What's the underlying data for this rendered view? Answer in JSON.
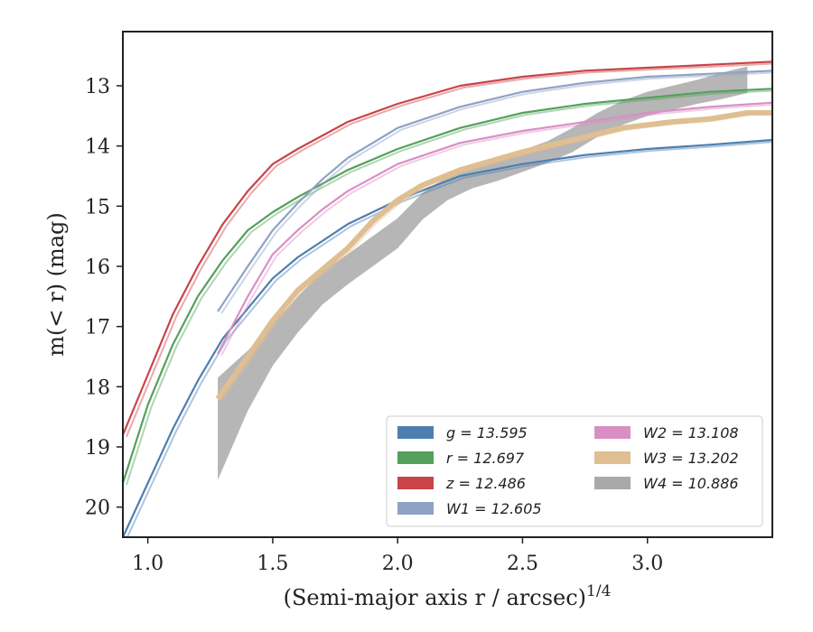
{
  "chart_data": {
    "type": "line",
    "xlabel": "(Semi-major axis r / arcsec)",
    "xlabel_superscript": "1/4",
    "ylabel": "m(< r) (mag)",
    "xlim": [
      0.9,
      3.5
    ],
    "ylim": [
      20.5,
      12.1
    ],
    "y_inverted": true,
    "grid": false,
    "legend_position": "lower-right",
    "x_ticks": [
      "1.0",
      "1.5",
      "2.0",
      "2.5",
      "3.0"
    ],
    "y_ticks": [
      "13",
      "14",
      "15",
      "16",
      "17",
      "18",
      "19",
      "20"
    ],
    "series": [
      {
        "name": "g = 13.595",
        "color": "#4c7fb0",
        "x": [
          0.9,
          1.0,
          1.1,
          1.2,
          1.3,
          1.4,
          1.5,
          1.6,
          1.8,
          2.0,
          2.25,
          2.5,
          2.75,
          3.0,
          3.25,
          3.5
        ],
        "y": [
          20.5,
          19.6,
          18.7,
          17.9,
          17.2,
          16.7,
          16.2,
          15.85,
          15.3,
          14.9,
          14.5,
          14.3,
          14.15,
          14.05,
          13.98,
          13.9
        ]
      },
      {
        "name": "r = 12.697",
        "color": "#55a05b",
        "x": [
          0.9,
          1.0,
          1.1,
          1.2,
          1.3,
          1.4,
          1.5,
          1.6,
          1.8,
          2.0,
          2.25,
          2.5,
          2.75,
          3.0,
          3.25,
          3.5
        ],
        "y": [
          19.6,
          18.3,
          17.3,
          16.5,
          15.9,
          15.4,
          15.1,
          14.85,
          14.4,
          14.05,
          13.7,
          13.45,
          13.3,
          13.2,
          13.1,
          13.05
        ]
      },
      {
        "name": "z = 12.486",
        "color": "#c84449",
        "x": [
          0.9,
          1.0,
          1.1,
          1.2,
          1.3,
          1.4,
          1.5,
          1.6,
          1.8,
          2.0,
          2.25,
          2.5,
          2.75,
          3.0,
          3.25,
          3.5
        ],
        "y": [
          18.8,
          17.8,
          16.8,
          16.0,
          15.3,
          14.75,
          14.3,
          14.05,
          13.6,
          13.3,
          13.0,
          12.85,
          12.75,
          12.7,
          12.65,
          12.6
        ]
      },
      {
        "name": "W1 = 12.605",
        "color": "#8fa2c5",
        "x": [
          1.28,
          1.4,
          1.5,
          1.6,
          1.7,
          1.8,
          2.0,
          2.25,
          2.5,
          2.75,
          3.0,
          3.25,
          3.5
        ],
        "y": [
          16.75,
          16.0,
          15.4,
          14.95,
          14.55,
          14.2,
          13.7,
          13.35,
          13.1,
          12.95,
          12.85,
          12.8,
          12.75
        ]
      },
      {
        "name": "W2 = 13.108",
        "color": "#da8fc4",
        "x": [
          1.28,
          1.4,
          1.5,
          1.6,
          1.7,
          1.8,
          2.0,
          2.25,
          2.5,
          2.75,
          3.0,
          3.25,
          3.5
        ],
        "y": [
          17.45,
          16.5,
          15.8,
          15.4,
          15.05,
          14.75,
          14.3,
          13.95,
          13.75,
          13.6,
          13.45,
          13.35,
          13.28
        ]
      },
      {
        "name": "W3 = 13.202",
        "color": "#dfbf92",
        "x": [
          1.28,
          1.4,
          1.5,
          1.6,
          1.7,
          1.8,
          1.9,
          2.0,
          2.1,
          2.25,
          2.5,
          2.75,
          2.9,
          3.0,
          3.1,
          3.25,
          3.4,
          3.5
        ],
        "y": [
          18.2,
          17.5,
          16.9,
          16.4,
          16.05,
          15.7,
          15.25,
          14.9,
          14.65,
          14.4,
          14.1,
          13.85,
          13.7,
          13.65,
          13.6,
          13.55,
          13.45,
          13.45
        ]
      },
      {
        "name": "W4 = 10.886",
        "color": "#a9a9a9",
        "x": [
          1.28,
          1.4,
          1.5,
          1.6,
          1.7,
          1.8,
          1.9,
          2.0,
          2.1,
          2.2,
          2.3,
          2.4,
          2.5,
          2.6,
          2.7,
          2.8,
          2.9,
          3.0,
          3.1,
          3.2,
          3.3,
          3.4
        ],
        "y": [
          18.7,
          17.9,
          17.3,
          16.8,
          16.35,
          16.05,
          15.75,
          15.45,
          15.0,
          14.7,
          14.5,
          14.4,
          14.25,
          14.1,
          13.9,
          13.65,
          13.45,
          13.3,
          13.2,
          13.1,
          13.0,
          12.9
        ],
        "band_halfwidth": [
          0.85,
          0.5,
          0.35,
          0.3,
          0.28,
          0.25,
          0.25,
          0.25,
          0.22,
          0.2,
          0.2,
          0.18,
          0.18,
          0.18,
          0.2,
          0.2,
          0.2,
          0.2,
          0.2,
          0.2,
          0.22,
          0.22
        ]
      }
    ],
    "legend_columns": [
      [
        "g = 13.595",
        "r = 12.697",
        "z = 12.486",
        "W1 = 12.605"
      ],
      [
        "W2 = 13.108",
        "W3 = 13.202",
        "W4 = 10.886"
      ]
    ]
  }
}
